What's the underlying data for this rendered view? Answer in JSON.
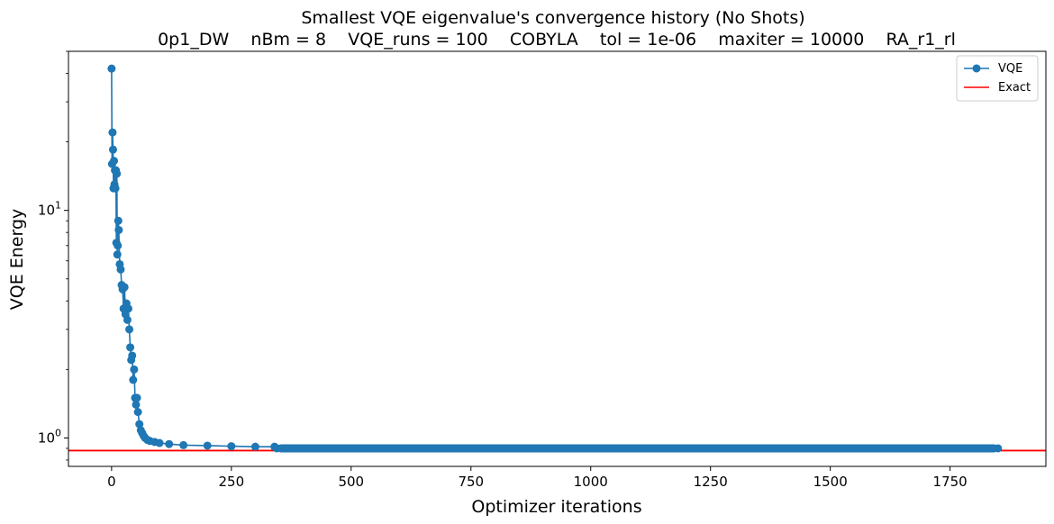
{
  "chart_data": {
    "type": "line",
    "title": "Smallest VQE eigenvalue's convergence history (No Shots)",
    "subtitle": "0p1_DW    nBm = 8    VQE_runs = 100    COBYLA    tol = 1e-06    maxiter = 10000    RA_r1_rl",
    "xlabel": "Optimizer iterations",
    "ylabel": "VQE Energy",
    "xlim": [
      -90,
      1950
    ],
    "ylim": [
      0.75,
      50
    ],
    "yscale": "log",
    "xticks": [
      0,
      250,
      500,
      750,
      1000,
      1250,
      1500,
      1750
    ],
    "yticks": [
      1,
      10
    ],
    "ytick_labels": [
      "10^0",
      "10^1"
    ],
    "grid": false,
    "legend_position": "top-right",
    "series": [
      {
        "name": "VQE",
        "color": "#1f77b4",
        "marker": "circle",
        "x": [
          0,
          1,
          2,
          3,
          4,
          5,
          6,
          7,
          8,
          9,
          10,
          11,
          12,
          13,
          14,
          15,
          17,
          19,
          21,
          23,
          25,
          27,
          29,
          31,
          33,
          35,
          37,
          39,
          41,
          43,
          45,
          47,
          49,
          51,
          53,
          55,
          58,
          61,
          64,
          67,
          70,
          75,
          80,
          90,
          100,
          120,
          150,
          200,
          250,
          300,
          340,
          345,
          500,
          750,
          1000,
          1250,
          1500,
          1750,
          1850
        ],
        "y": [
          42,
          16,
          22,
          18.5,
          12.5,
          16.5,
          13,
          15,
          12.5,
          15,
          7.2,
          14.5,
          6.4,
          7,
          9,
          8.2,
          5.8,
          5.5,
          4.7,
          4.5,
          3.7,
          4.6,
          3.5,
          3.9,
          3.3,
          3.7,
          3.0,
          2.5,
          2.2,
          2.3,
          1.8,
          2.0,
          1.5,
          1.4,
          1.5,
          1.3,
          1.15,
          1.08,
          1.05,
          1.02,
          1.0,
          0.98,
          0.97,
          0.96,
          0.95,
          0.94,
          0.93,
          0.925,
          0.92,
          0.915,
          0.915,
          0.9,
          0.9,
          0.9,
          0.9,
          0.9,
          0.9,
          0.9,
          0.9
        ]
      },
      {
        "name": "Exact",
        "color": "#ff0000",
        "type": "hline",
        "y": 0.88
      }
    ]
  }
}
